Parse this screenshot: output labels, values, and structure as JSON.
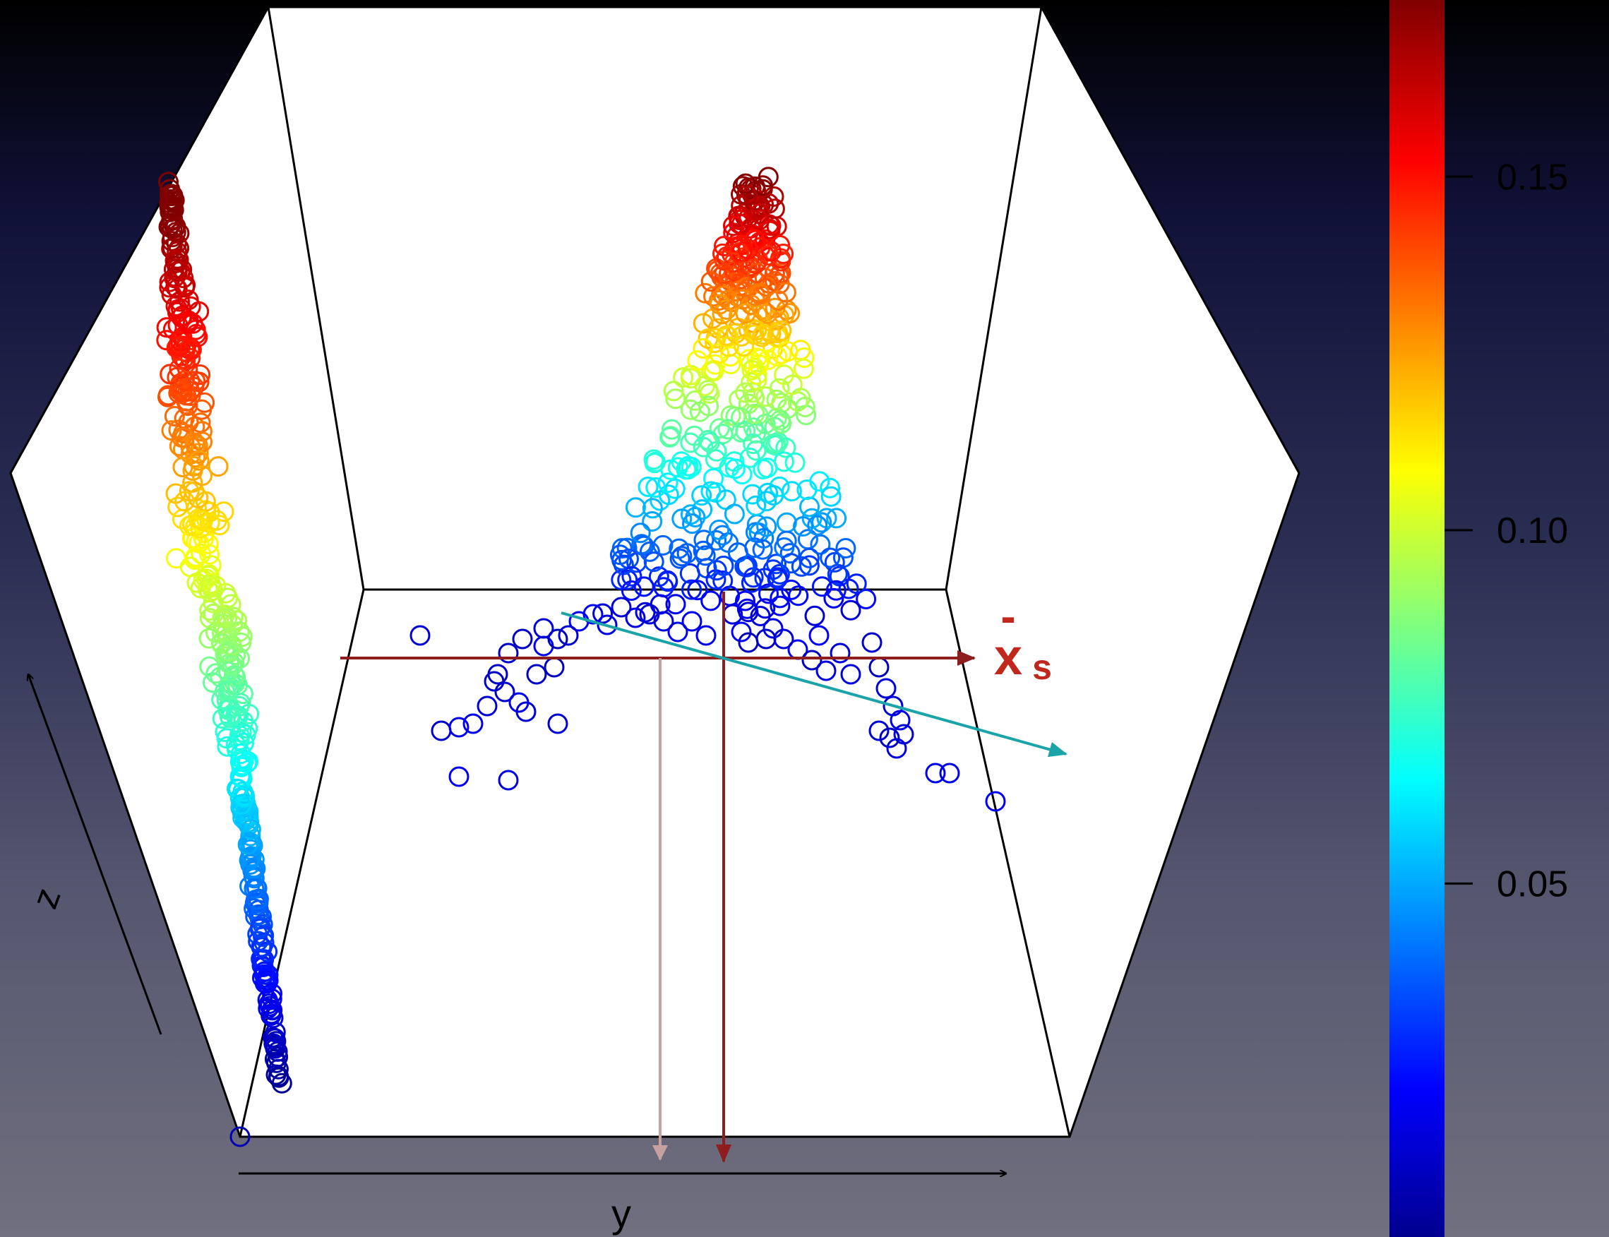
{
  "chart_data": {
    "type": "scatter",
    "title": "",
    "xlabel": "y",
    "zlabel": "z",
    "colorbar": {
      "ticks": [
        "0.05",
        "0.10",
        "0.15"
      ],
      "values": [
        0.05,
        0.1,
        0.15
      ],
      "range": [
        0.0,
        0.175
      ],
      "colormap": "jet"
    },
    "annotation": {
      "main": "x",
      "sub": "s",
      "bar": "-"
    },
    "colors": {
      "annotation": "#b0261b",
      "arrow_dark": "#8e1d1d",
      "arrow_faint": "#c9a0a0",
      "arrow_teal": "#1aa3a8",
      "frame": "#000000",
      "panel": "#ffffff"
    }
  }
}
